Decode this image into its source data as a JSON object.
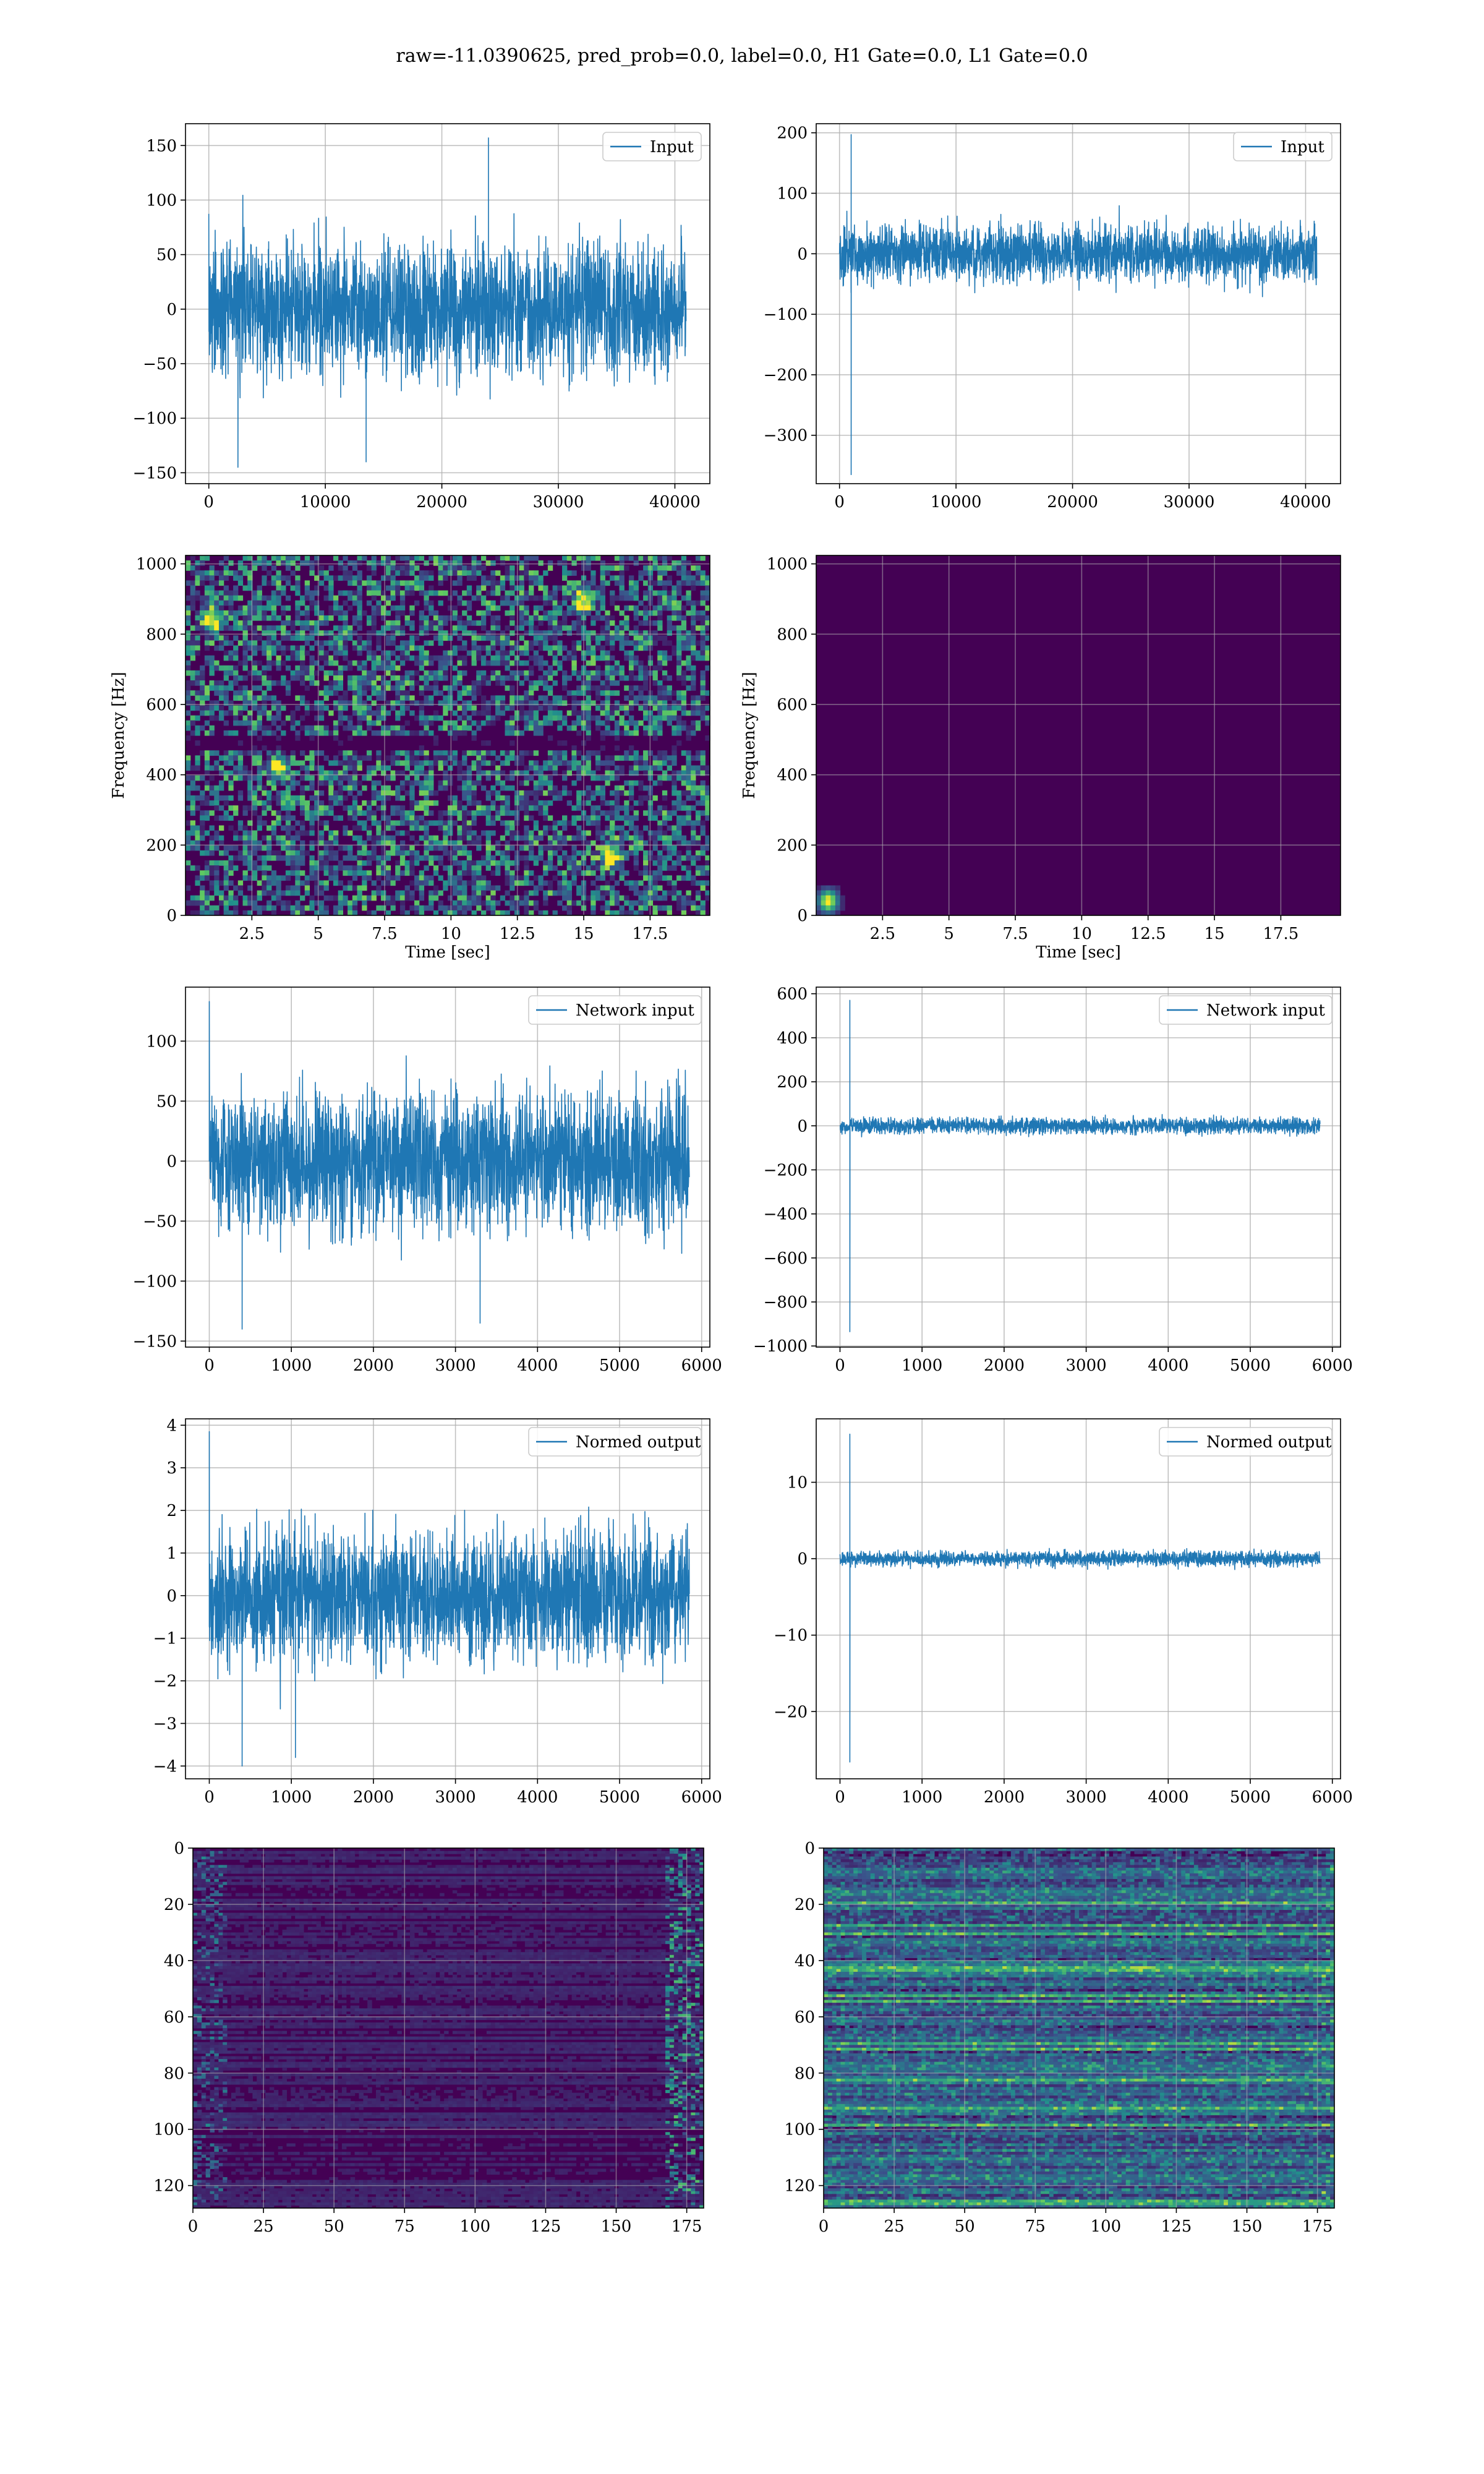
{
  "figure": {
    "title": "raw=-11.0390625, pred_prob=0.0, label=0.0, H1 Gate=0.0, L1 Gate=0.0"
  },
  "colors": {
    "line": "#1f77b4",
    "viridis_dark": "#440154",
    "viridis_blue": "#3b528b",
    "viridis_teal": "#21918c",
    "viridis_green": "#5ec962",
    "viridis_yellow": "#fde725",
    "grid": "#b0b0b0"
  },
  "chart_data": [
    {
      "type": "line",
      "legend": [
        "Input"
      ],
      "legend_loc": "upper right",
      "grid": true,
      "xlim": [
        -2000,
        43000
      ],
      "ylim": [
        -160,
        170
      ],
      "xticks": [
        0,
        10000,
        20000,
        30000,
        40000
      ],
      "yticks": [
        -150,
        -100,
        -50,
        0,
        50,
        100,
        150
      ],
      "series": [
        {
          "name": "Input",
          "kind": "noise",
          "n": 40960,
          "envelope": [
            -100,
            100
          ],
          "spikes": [
            [
              24000,
              157
            ],
            [
              2500,
              -145
            ],
            [
              13500,
              -140
            ]
          ]
        }
      ]
    },
    {
      "type": "line",
      "legend": [
        "Input"
      ],
      "legend_loc": "upper right",
      "grid": true,
      "xlim": [
        -2000,
        43000
      ],
      "ylim": [
        -380,
        215
      ],
      "xticks": [
        0,
        10000,
        20000,
        30000,
        40000
      ],
      "yticks": [
        -300,
        -200,
        -100,
        0,
        100,
        200
      ],
      "series": [
        {
          "name": "Input",
          "kind": "noise",
          "n": 40960,
          "envelope": [
            -75,
            75
          ],
          "spikes": [
            [
              1000,
              197
            ],
            [
              1000,
              -365
            ]
          ]
        }
      ]
    },
    {
      "type": "heatmap",
      "colormap": "viridis",
      "xlabel": "Time [sec]",
      "ylabel": "Frequency [Hz]",
      "grid": true,
      "xlim": [
        0,
        19.75
      ],
      "ylim": [
        0,
        1024
      ],
      "xticks": [
        2.5,
        5.0,
        7.5,
        10.0,
        12.5,
        15.0,
        17.5
      ],
      "yticks": [
        0,
        200,
        400,
        600,
        800,
        1000
      ],
      "features": {
        "dark_band_hz": 495,
        "hot_spots": [
          [
            16.0,
            170
          ],
          [
            3.5,
            420
          ],
          [
            15.0,
            900
          ],
          [
            1.0,
            840
          ]
        ]
      }
    },
    {
      "type": "heatmap",
      "colormap": "viridis",
      "xlabel": "Time [sec]",
      "ylabel": "Frequency [Hz]",
      "grid": true,
      "xlim": [
        0,
        19.75
      ],
      "ylim": [
        0,
        1024
      ],
      "xticks": [
        2.5,
        5.0,
        7.5,
        10.0,
        12.5,
        15.0,
        17.5
      ],
      "yticks": [
        0,
        200,
        400,
        600,
        800,
        1000
      ],
      "features": {
        "hot_spots": [
          [
            0.45,
            40
          ]
        ]
      }
    },
    {
      "type": "line",
      "legend": [
        "Network input"
      ],
      "legend_loc": "upper right",
      "grid": true,
      "xlim": [
        -290,
        6100
      ],
      "ylim": [
        -155,
        145
      ],
      "xticks": [
        0,
        1000,
        2000,
        3000,
        4000,
        5000,
        6000
      ],
      "yticks": [
        -150,
        -100,
        -50,
        0,
        50,
        100
      ],
      "series": [
        {
          "name": "Network input",
          "kind": "noise",
          "n": 5850,
          "envelope": [
            -95,
            95
          ],
          "spikes": [
            [
              0,
              133
            ],
            [
              400,
              -140
            ],
            [
              3300,
              -135
            ]
          ]
        }
      ]
    },
    {
      "type": "line",
      "legend": [
        "Network input"
      ],
      "legend_loc": "upper right",
      "grid": true,
      "xlim": [
        -290,
        6100
      ],
      "ylim": [
        -1005,
        630
      ],
      "xticks": [
        0,
        1000,
        2000,
        3000,
        4000,
        5000,
        6000
      ],
      "yticks": [
        -1000,
        -800,
        -600,
        -400,
        -200,
        0,
        200,
        400,
        600
      ],
      "series": [
        {
          "name": "Network input",
          "kind": "noise",
          "n": 5850,
          "envelope": [
            -60,
            60
          ],
          "spikes": [
            [
              120,
              570
            ],
            [
              120,
              -935
            ]
          ]
        }
      ]
    },
    {
      "type": "line",
      "legend": [
        "Normed output"
      ],
      "legend_loc": "upper right",
      "grid": true,
      "xlim": [
        -290,
        6100
      ],
      "ylim": [
        -4.3,
        4.15
      ],
      "xticks": [
        0,
        1000,
        2000,
        3000,
        4000,
        5000,
        6000
      ],
      "yticks": [
        -4,
        -3,
        -2,
        -1,
        0,
        1,
        2,
        3,
        4
      ],
      "series": [
        {
          "name": "Normed output",
          "kind": "noise",
          "n": 5850,
          "envelope": [
            -2.6,
            2.6
          ],
          "spikes": [
            [
              0,
              3.85
            ],
            [
              400,
              -4.0
            ],
            [
              1050,
              -3.8
            ]
          ]
        }
      ]
    },
    {
      "type": "line",
      "legend": [
        "Normed output"
      ],
      "legend_loc": "upper right",
      "grid": true,
      "xlim": [
        -290,
        6100
      ],
      "ylim": [
        -28.8,
        18.3
      ],
      "xticks": [
        0,
        1000,
        2000,
        3000,
        4000,
        5000,
        6000
      ],
      "yticks": [
        -20,
        -10,
        0,
        10
      ],
      "series": [
        {
          "name": "Normed output",
          "kind": "noise",
          "n": 5850,
          "envelope": [
            -1.6,
            1.6
          ],
          "spikes": [
            [
              120,
              16.3
            ],
            [
              120,
              -26.6
            ]
          ]
        }
      ]
    },
    {
      "type": "heatmap",
      "colormap": "viridis",
      "grid": true,
      "xlim": [
        0,
        181
      ],
      "ylim": [
        128,
        0
      ],
      "xticks": [
        0,
        25,
        50,
        75,
        100,
        125,
        150,
        175
      ],
      "yticks": [
        0,
        20,
        40,
        60,
        80,
        100,
        120
      ],
      "features": {
        "bright_edges": true
      }
    },
    {
      "type": "heatmap",
      "colormap": "viridis",
      "grid": true,
      "xlim": [
        0,
        181
      ],
      "ylim": [
        128,
        0
      ],
      "xticks": [
        0,
        25,
        50,
        75,
        100,
        125,
        150,
        175
      ],
      "yticks": [
        0,
        20,
        40,
        60,
        80,
        100,
        120
      ],
      "features": {
        "bright_edges": false
      }
    }
  ]
}
